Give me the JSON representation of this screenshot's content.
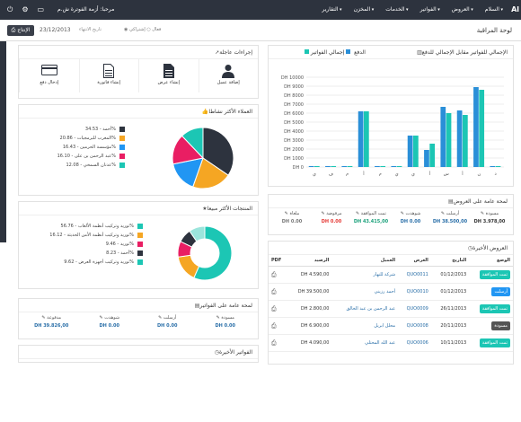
{
  "navbar": {
    "brand": "Al",
    "menu": [
      "السلام",
      "العروض",
      "الفواتير",
      "الخدمات",
      "المخزن",
      "التقارير"
    ],
    "user": "مرحبا: أزمة الفوترة ش.م"
  },
  "subbar": {
    "title": "لوحة المراقبة",
    "export": "الإنتاج",
    "date": "23/12/2013",
    "date_label": "تاريخ الانتهاء",
    "radio_a": "فعال",
    "radio_b": "إشتراكي"
  },
  "quick_actions": {
    "title": "إجراءات عاجلة",
    "items": [
      {
        "label": "إضافة عميل",
        "icon": "user-icon"
      },
      {
        "label": "إنشاء عرض",
        "icon": "document-icon"
      },
      {
        "label": "إنشاء فاتورة",
        "icon": "document-icon"
      },
      {
        "label": "إدخال دفع",
        "icon": "credit-card-icon"
      }
    ]
  },
  "clients_panel": {
    "title": "العملاء الأكثر نشاطا",
    "legend": [
      {
        "label": "أحمد - 34.53%",
        "color": "#2d333e"
      },
      {
        "label": "المغرب للبرمجيات - 20.86%",
        "color": "#f5a623"
      },
      {
        "label": "مؤسسة الحرمين - 16.43%",
        "color": "#2196f3"
      },
      {
        "label": "عبد الرحمن بن على - 16.10%",
        "color": "#e91e63"
      },
      {
        "label": "عدنان السمخي - 12.08%",
        "color": "#1cc6b4"
      }
    ],
    "chart_data": {
      "type": "pie",
      "values": [
        34.53,
        20.86,
        16.43,
        16.1,
        12.08
      ],
      "colors": [
        "#2d333e",
        "#f5a623",
        "#2196f3",
        "#e91e63",
        "#1cc6b4"
      ]
    }
  },
  "products_panel": {
    "title": "المنتجات الأكثر مبيعا",
    "legend": [
      {
        "label": "توريد وتركيب أنظمة الألعاب - 56.76%",
        "color": "#1cc6b4"
      },
      {
        "label": "توريد وتركيب أنظمة الأمن الحديثة - 16.12%",
        "color": "#f5a623"
      },
      {
        "label": "توريد - 9.46%",
        "color": "#e91e63"
      },
      {
        "label": "أحمد - 8.23%",
        "color": "#2d333e"
      },
      {
        "label": "توريد وتركيب أجهزة العرض - 9.62%",
        "color": "#1cc6b4"
      }
    ],
    "chart_data": {
      "type": "pie",
      "values": [
        56.76,
        16.12,
        9.46,
        8.23,
        9.62
      ],
      "colors": [
        "#1cc6b4",
        "#f5a623",
        "#e91e63",
        "#2d333e",
        "#9be5dc"
      ]
    }
  },
  "invoices_summary": {
    "title": "لمحة عامة على الفواتير",
    "cells": [
      {
        "label": "مسودة",
        "value": "DH 0.00",
        "color": "#2a6fa8"
      },
      {
        "label": "أرسلت",
        "value": "DH 0.00",
        "color": "#2a6fa8"
      },
      {
        "label": "شوهدت",
        "value": "DH 0.00",
        "color": "#2a6fa8"
      },
      {
        "label": "مدفوعة",
        "value": "DH 39.826,00",
        "color": "#2a6fa8"
      }
    ]
  },
  "recent_invoices": {
    "title": "الفواتير الأخيرة"
  },
  "bar_panel": {
    "title": "الإجمالي للفواتير مقابل الإجمالي للدفع",
    "legend_a": "إجمالي الفواتير",
    "legend_b": "الدفع",
    "chart_data": {
      "type": "bar",
      "categories": [
        "ي",
        "ف",
        "م",
        "أ",
        "م",
        "ي",
        "ي",
        "أ",
        "س",
        "أ",
        "ن",
        "د"
      ],
      "series": [
        {
          "name": "إجمالي الفواتير",
          "values": [
            0,
            0,
            0,
            6200,
            0,
            0,
            3500,
            1900,
            6700,
            6300,
            8900,
            0
          ],
          "color": "#2a8fd8"
        },
        {
          "name": "الدفع",
          "values": [
            0,
            0,
            0,
            6200,
            0,
            0,
            3500,
            2600,
            6000,
            5800,
            8600,
            0
          ],
          "color": "#1cc6b4"
        }
      ],
      "yticks": [
        "DH 0",
        "DH 1000",
        "DH 2000",
        "DH 3000",
        "DH 4000",
        "DH 5000",
        "DH 6000",
        "DH 7000",
        "DH 8000",
        "DH 9000",
        "DH 10000"
      ],
      "ylim": [
        0,
        10000
      ]
    }
  },
  "quotes_summary": {
    "title": "لمحة عامة على العروض",
    "cells": [
      {
        "label": "مسودة",
        "value": "DH 3.978,00",
        "color": "#333"
      },
      {
        "label": "أرسلت",
        "value": "DH 38.500,00",
        "color": "#2a6fa8"
      },
      {
        "label": "شوهدت",
        "value": "DH 0.00",
        "color": "#2a6fa8"
      },
      {
        "label": "تمت الموافقة",
        "value": "DH 43.415,00",
        "color": "#1aa07a"
      },
      {
        "label": "مرفوضة",
        "value": "DH 0.00",
        "color": "#e53935"
      },
      {
        "label": "ملغاة",
        "value": "DH 0.00",
        "color": "#777"
      }
    ]
  },
  "recent_quotes": {
    "title": "العروض الأخيرة",
    "headers": [
      "الوضع",
      "التاريخ",
      "العرض",
      "العميل",
      "الرصيد",
      "PDF"
    ],
    "rows": [
      {
        "status": "تمت الموافقة",
        "status_color": "#1cc6b4",
        "date": "01/12/2013",
        "num": "QUO0011",
        "client": "شركة للنهار",
        "amount": "DH 4.590,00"
      },
      {
        "status": "أرسلت",
        "status_color": "#2196f3",
        "date": "01/12/2013",
        "num": "QUO0010",
        "client": "أحمد رزيني",
        "amount": "DH 39.500,00"
      },
      {
        "status": "تمت الموافقة",
        "status_color": "#1cc6b4",
        "date": "26/11/2013",
        "num": "QUO0009",
        "client": "عبد الرحمن بن عبد الخالق",
        "amount": "DH 2.800,00"
      },
      {
        "status": "مسودة",
        "status_color": "#555",
        "date": "20/11/2013",
        "num": "QUO0008",
        "client": "محلل ابريل",
        "amount": "DH 6.900,00"
      },
      {
        "status": "تمت الموافقة",
        "status_color": "#1cc6b4",
        "date": "10/11/2013",
        "num": "QUO0006",
        "client": "عبد الله المحتلي",
        "amount": "DH 4.090,00"
      }
    ]
  }
}
